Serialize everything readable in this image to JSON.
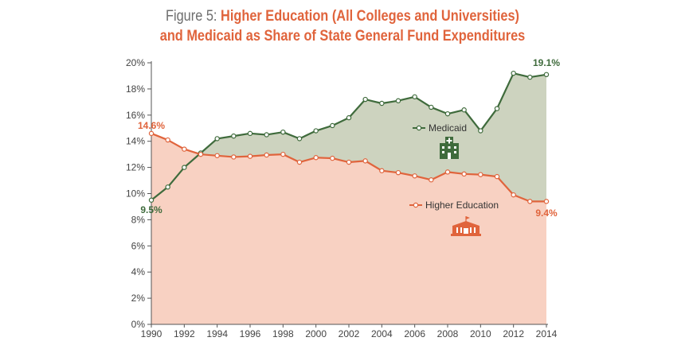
{
  "title": {
    "prefix": "Figure 5: ",
    "line1": "Higher Education (All Colleges and Universities)",
    "line2": "and Medicaid as Share of State General Fund Expenditures"
  },
  "chart_data": {
    "type": "area",
    "title": "Figure 5: Higher Education (All Colleges and Universities) and Medicaid as Share of State General Fund Expenditures",
    "x": [
      1990,
      1991,
      1992,
      1993,
      1994,
      1995,
      1996,
      1997,
      1998,
      1999,
      2000,
      2001,
      2002,
      2003,
      2004,
      2005,
      2006,
      2007,
      2008,
      2009,
      2010,
      2011,
      2012,
      2013,
      2014
    ],
    "x_ticks": [
      "1990",
      "1992",
      "1994",
      "1996",
      "1998",
      "2000",
      "2002",
      "2004",
      "2006",
      "2008",
      "2010",
      "2012",
      "2014"
    ],
    "y_ticks": [
      "0%",
      "2%",
      "4%",
      "6%",
      "8%",
      "10%",
      "12%",
      "14%",
      "16%",
      "18%",
      "20%"
    ],
    "ylim": [
      0,
      20
    ],
    "xlim": [
      1990,
      2014
    ],
    "series": [
      {
        "name": "Medicaid",
        "color": "#3f6b3c",
        "fill": "#cdd3bf",
        "values": [
          9.5,
          10.5,
          12.0,
          13.1,
          14.2,
          14.4,
          14.6,
          14.5,
          14.7,
          14.2,
          14.8,
          15.2,
          15.8,
          17.2,
          16.9,
          17.1,
          17.4,
          16.6,
          16.1,
          16.4,
          14.8,
          16.5,
          19.2,
          18.9,
          19.1
        ],
        "start_label": "9.5%",
        "end_label": "19.1%",
        "icon": "hospital-icon"
      },
      {
        "name": "Higher Education",
        "color": "#e0643c",
        "fill": "#f8d1c2",
        "values": [
          14.6,
          14.1,
          13.4,
          13.0,
          12.9,
          12.8,
          12.85,
          12.95,
          13.0,
          12.4,
          12.75,
          12.7,
          12.4,
          12.5,
          11.75,
          11.6,
          11.35,
          11.05,
          11.65,
          11.5,
          11.45,
          11.3,
          9.9,
          9.4,
          9.4
        ],
        "start_label": "14.6%",
        "end_label": "9.4%",
        "icon": "university-icon"
      }
    ]
  }
}
